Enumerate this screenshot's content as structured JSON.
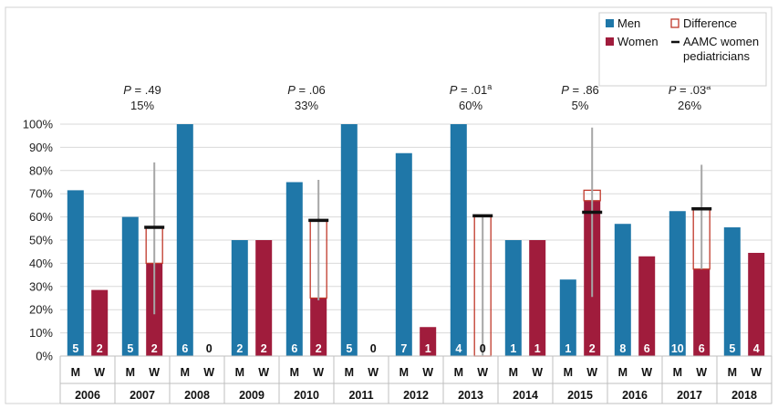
{
  "colors": {
    "men": "#1f77a8",
    "women": "#a01c3c",
    "difference_border": "#c0392b",
    "aamc_marker": "#111111",
    "error_bar": "#a6a6a6",
    "grid": "#d9d9d9"
  },
  "legend": {
    "men": "Men",
    "women": "Women",
    "difference": "Difference",
    "aamc_line1": "AAMC women",
    "aamc_line2": "pediatricians"
  },
  "chart_data": {
    "type": "bar",
    "ylim": [
      0,
      100
    ],
    "yticks": [
      "0%",
      "10%",
      "20%",
      "30%",
      "40%",
      "50%",
      "60%",
      "70%",
      "80%",
      "90%",
      "100%"
    ],
    "grid": true,
    "legend_position": "top-right",
    "group_labels": [
      "M",
      "W"
    ],
    "years": [
      "2006",
      "2007",
      "2008",
      "2009",
      "2010",
      "2011",
      "2012",
      "2013",
      "2014",
      "2015",
      "2016",
      "2017",
      "2018"
    ],
    "series": [
      {
        "name": "Men",
        "values": [
          71.5,
          60,
          100,
          50,
          75,
          100,
          87.5,
          100,
          50,
          33,
          57,
          62.5,
          55.5
        ],
        "counts": [
          "5",
          "5",
          "6",
          "2",
          "6",
          "5",
          "7",
          "4",
          "1",
          "1",
          "8",
          "10",
          "5"
        ]
      },
      {
        "name": "Women",
        "values": [
          28.5,
          40,
          0,
          50,
          25,
          0,
          12.5,
          0,
          50,
          67,
          43,
          37.5,
          44.5
        ],
        "counts": [
          "2",
          "2",
          "0",
          "2",
          "2",
          "0",
          "1",
          "0",
          "1",
          "2",
          "6",
          "6",
          "4"
        ]
      }
    ],
    "differences": [
      {
        "year": "2007",
        "aamc": 55.5,
        "err_low": 18,
        "err_high": 83.5
      },
      {
        "year": "2010",
        "aamc": 58.5,
        "err_low": 24,
        "err_high": 76
      },
      {
        "year": "2013",
        "aamc": 60.5,
        "err_low": 0,
        "err_high": 60.5
      },
      {
        "year": "2015",
        "aamc": 62,
        "top": 71.5,
        "err_low": 25.5,
        "err_high": 98.5
      },
      {
        "year": "2017",
        "aamc": 63.5,
        "err_low": 37.5,
        "err_high": 82.5
      }
    ],
    "annotations": [
      {
        "year": "2007",
        "p": "P",
        "p_value": " = .49",
        "superscript": "",
        "percent": "15%"
      },
      {
        "year": "2010",
        "p": "P",
        "p_value": " = .06",
        "superscript": "",
        "percent": "33%"
      },
      {
        "year": "2013",
        "p": "P",
        "p_value": " = .01",
        "superscript": "a",
        "percent": "60%"
      },
      {
        "year": "2015",
        "p": "P",
        "p_value": " = .86",
        "superscript": "",
        "percent": "5%"
      },
      {
        "year": "2017",
        "p": "P",
        "p_value": " = .03",
        "superscript": "a",
        "percent": "26%"
      }
    ]
  }
}
